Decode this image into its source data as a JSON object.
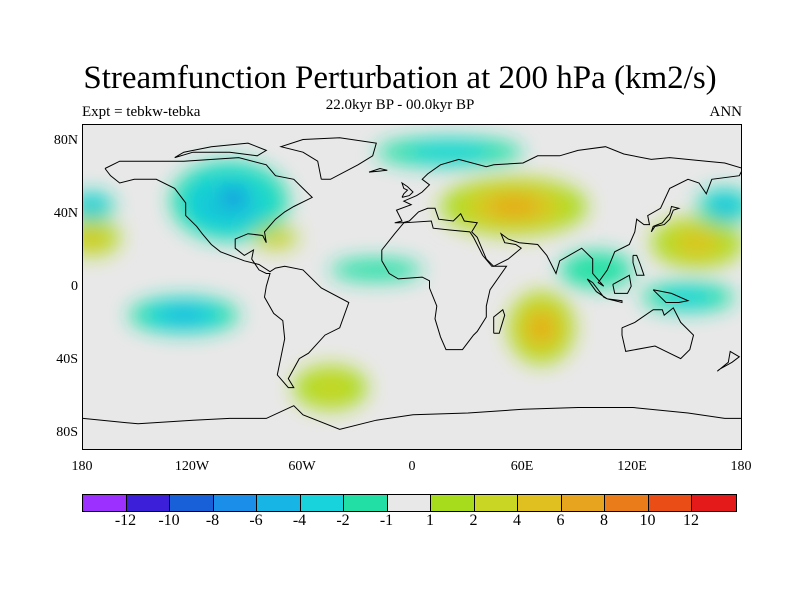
{
  "title": "Streamfunction Perturbation at 200 hPa (km2/s)",
  "subtitle": "22.0kyr BP - 00.0kyr BP",
  "left_label": "Expt = tebkw-tebka",
  "right_label": "ANN",
  "lat_ticks": [
    "80N",
    "40N",
    "0",
    "40S",
    "80S"
  ],
  "lon_ticks": [
    "180",
    "120W",
    "60W",
    "0",
    "60E",
    "120E",
    "180"
  ],
  "colorbar": {
    "colors": [
      "#9b30ff",
      "#3b1fd9",
      "#1760d8",
      "#1a8ee8",
      "#16b5e6",
      "#19d3dc",
      "#22e0a5",
      "#e8e8e8",
      "#a6dc1c",
      "#c9d623",
      "#e0c020",
      "#e7a41e",
      "#eb7c1a",
      "#ea4e16",
      "#e41a1a"
    ],
    "labels": [
      "-12",
      "-10",
      "-8",
      "-6",
      "-4",
      "-2",
      "-1",
      "1",
      "2",
      "4",
      "6",
      "8",
      "10",
      "12"
    ]
  },
  "blobs": [
    {
      "lon": -100,
      "lat": 48,
      "rx": 32,
      "ry": 22,
      "v": -7
    },
    {
      "lon": -98,
      "lat": 50,
      "rx": 15,
      "ry": 10,
      "v": -9
    },
    {
      "lon": -75,
      "lat": 28,
      "rx": 12,
      "ry": 6,
      "v": 5
    },
    {
      "lon": 55,
      "lat": 45,
      "rx": 40,
      "ry": 16,
      "v": 7
    },
    {
      "lon": 70,
      "lat": -22,
      "rx": 18,
      "ry": 20,
      "v": 8
    },
    {
      "lon": 155,
      "lat": 25,
      "rx": 25,
      "ry": 14,
      "v": 6
    },
    {
      "lon": -175,
      "lat": 28,
      "rx": 15,
      "ry": 10,
      "v": 5
    },
    {
      "lon": 170,
      "lat": 45,
      "rx": 15,
      "ry": 10,
      "v": -5
    },
    {
      "lon": -175,
      "lat": 45,
      "rx": 12,
      "ry": 8,
      "v": -5
    },
    {
      "lon": -125,
      "lat": -15,
      "rx": 30,
      "ry": 10,
      "v": -5
    },
    {
      "lon": 150,
      "lat": -5,
      "rx": 25,
      "ry": 8,
      "v": -4
    },
    {
      "lon": -45,
      "lat": -55,
      "rx": 20,
      "ry": 12,
      "v": 4
    },
    {
      "lon": -20,
      "lat": 10,
      "rx": 25,
      "ry": 6,
      "v": -2
    },
    {
      "lon": 20,
      "lat": 75,
      "rx": 40,
      "ry": 8,
      "v": -3
    },
    {
      "lon": 100,
      "lat": 10,
      "rx": 20,
      "ry": 10,
      "v": -2
    }
  ],
  "coastlines": [
    [
      [
        -168,
        66
      ],
      [
        -160,
        70
      ],
      [
        -140,
        70
      ],
      [
        -125,
        70
      ],
      [
        -95,
        72
      ],
      [
        -80,
        68
      ],
      [
        -75,
        62
      ],
      [
        -65,
        60
      ],
      [
        -60,
        55
      ],
      [
        -55,
        50
      ],
      [
        -65,
        45
      ],
      [
        -70,
        42
      ],
      [
        -75,
        38
      ],
      [
        -81,
        31
      ],
      [
        -80,
        25
      ],
      [
        -82,
        29
      ],
      [
        -90,
        30
      ],
      [
        -97,
        27
      ],
      [
        -97,
        22
      ],
      [
        -92,
        18
      ],
      [
        -87,
        21
      ],
      [
        -88,
        16
      ],
      [
        -84,
        10
      ],
      [
        -80,
        8
      ],
      [
        -78,
        8
      ],
      [
        -80,
        1
      ],
      [
        -81,
        -5
      ],
      [
        -76,
        -14
      ],
      [
        -71,
        -18
      ],
      [
        -70,
        -28
      ],
      [
        -72,
        -38
      ],
      [
        -74,
        -48
      ],
      [
        -68,
        -55
      ],
      [
        -65,
        -55
      ],
      [
        -68,
        -50
      ],
      [
        -62,
        -39
      ],
      [
        -57,
        -36
      ],
      [
        -48,
        -26
      ],
      [
        -40,
        -22
      ],
      [
        -35,
        -8
      ],
      [
        -50,
        0
      ],
      [
        -60,
        10
      ],
      [
        -70,
        12
      ],
      [
        -75,
        11
      ],
      [
        -78,
        9
      ],
      [
        -84,
        13
      ],
      [
        -92,
        15
      ],
      [
        -105,
        20
      ],
      [
        -110,
        24
      ],
      [
        -115,
        30
      ],
      [
        -118,
        34
      ],
      [
        -124,
        40
      ],
      [
        -124,
        47
      ],
      [
        -130,
        55
      ],
      [
        -140,
        60
      ],
      [
        -152,
        60
      ],
      [
        -160,
        58
      ],
      [
        -165,
        62
      ],
      [
        -168,
        66
      ]
    ],
    [
      [
        -10,
        36
      ],
      [
        -6,
        37
      ],
      [
        -9,
        43
      ],
      [
        -1,
        46
      ],
      [
        -5,
        48
      ],
      [
        2,
        51
      ],
      [
        5,
        53
      ],
      [
        9,
        57
      ],
      [
        5,
        60
      ],
      [
        8,
        63
      ],
      [
        15,
        68
      ],
      [
        25,
        71
      ],
      [
        40,
        67
      ],
      [
        44,
        68
      ],
      [
        60,
        69
      ],
      [
        68,
        73
      ],
      [
        80,
        73
      ],
      [
        90,
        76
      ],
      [
        105,
        78
      ],
      [
        115,
        74
      ],
      [
        130,
        71
      ],
      [
        140,
        72
      ],
      [
        160,
        70
      ],
      [
        170,
        69
      ],
      [
        180,
        66
      ],
      [
        178,
        62
      ],
      [
        163,
        60
      ],
      [
        160,
        52
      ],
      [
        156,
        58
      ],
      [
        150,
        60
      ],
      [
        140,
        55
      ],
      [
        135,
        44
      ],
      [
        128,
        40
      ],
      [
        129,
        35
      ],
      [
        126,
        35
      ],
      [
        122,
        38
      ],
      [
        121,
        31
      ],
      [
        118,
        24
      ],
      [
        110,
        20
      ],
      [
        106,
        10
      ],
      [
        101,
        3
      ],
      [
        104,
        1
      ],
      [
        98,
        8
      ],
      [
        98,
        16
      ],
      [
        92,
        22
      ],
      [
        80,
        15
      ],
      [
        78,
        8
      ],
      [
        73,
        18
      ],
      [
        68,
        24
      ],
      [
        58,
        25
      ],
      [
        52,
        27
      ],
      [
        48,
        30
      ],
      [
        50,
        25
      ],
      [
        56,
        24
      ],
      [
        59,
        22
      ],
      [
        52,
        16
      ],
      [
        44,
        12
      ],
      [
        40,
        16
      ],
      [
        35,
        28
      ],
      [
        32,
        31
      ],
      [
        35,
        36
      ],
      [
        28,
        37
      ],
      [
        26,
        41
      ],
      [
        22,
        37
      ],
      [
        14,
        38
      ],
      [
        12,
        44
      ],
      [
        8,
        44
      ],
      [
        3,
        42
      ],
      [
        -2,
        37
      ],
      [
        -6,
        36
      ],
      [
        -10,
        36
      ]
    ],
    [
      [
        -17,
        15
      ],
      [
        -17,
        21
      ],
      [
        -10,
        30
      ],
      [
        -5,
        36
      ],
      [
        10,
        37
      ],
      [
        11,
        33
      ],
      [
        20,
        32
      ],
      [
        31,
        31
      ],
      [
        33,
        28
      ],
      [
        38,
        18
      ],
      [
        43,
        12
      ],
      [
        51,
        12
      ],
      [
        42,
        -1
      ],
      [
        40,
        -10
      ],
      [
        40,
        -16
      ],
      [
        35,
        -24
      ],
      [
        33,
        -26
      ],
      [
        27,
        -34
      ],
      [
        18,
        -34
      ],
      [
        15,
        -27
      ],
      [
        12,
        -17
      ],
      [
        13,
        -10
      ],
      [
        9,
        0
      ],
      [
        9,
        4
      ],
      [
        5,
        6
      ],
      [
        -8,
        5
      ],
      [
        -13,
        8
      ],
      [
        -17,
        15
      ]
    ],
    [
      [
        114,
        -22
      ],
      [
        121,
        -19
      ],
      [
        131,
        -12
      ],
      [
        136,
        -12
      ],
      [
        137,
        -15
      ],
      [
        142,
        -11
      ],
      [
        146,
        -19
      ],
      [
        153,
        -26
      ],
      [
        151,
        -34
      ],
      [
        146,
        -39
      ],
      [
        138,
        -35
      ],
      [
        132,
        -32
      ],
      [
        116,
        -35
      ],
      [
        114,
        -26
      ],
      [
        114,
        -22
      ]
    ],
    [
      [
        -50,
        60
      ],
      [
        -45,
        60
      ],
      [
        -30,
        68
      ],
      [
        -22,
        73
      ],
      [
        -20,
        80
      ],
      [
        -40,
        83
      ],
      [
        -60,
        82
      ],
      [
        -72,
        78
      ],
      [
        -60,
        75
      ],
      [
        -52,
        70
      ],
      [
        -50,
        60
      ]
    ],
    [
      [
        -180,
        -72
      ],
      [
        -150,
        -75
      ],
      [
        -120,
        -73
      ],
      [
        -100,
        -72
      ],
      [
        -80,
        -72
      ],
      [
        -65,
        -65
      ],
      [
        -60,
        -70
      ],
      [
        -40,
        -78
      ],
      [
        -20,
        -73
      ],
      [
        0,
        -70
      ],
      [
        30,
        -69
      ],
      [
        60,
        -67
      ],
      [
        90,
        -66
      ],
      [
        120,
        -66
      ],
      [
        150,
        -69
      ],
      [
        170,
        -72
      ],
      [
        180,
        -72
      ]
    ],
    [
      [
        -6,
        50
      ],
      [
        -2,
        51
      ],
      [
        0,
        53
      ],
      [
        -3,
        56
      ],
      [
        -6,
        58
      ],
      [
        -5,
        55
      ],
      [
        -3,
        54
      ],
      [
        -5,
        52
      ],
      [
        -6,
        50
      ]
    ],
    [
      [
        130,
        31
      ],
      [
        132,
        34
      ],
      [
        137,
        35
      ],
      [
        140,
        38
      ],
      [
        142,
        43
      ],
      [
        145,
        44
      ],
      [
        141,
        45
      ],
      [
        140,
        41
      ],
      [
        136,
        36
      ],
      [
        131,
        34
      ],
      [
        130,
        31
      ]
    ],
    [
      [
        44,
        -25
      ],
      [
        47,
        -25
      ],
      [
        50,
        -15
      ],
      [
        49,
        -12
      ],
      [
        44,
        -16
      ],
      [
        44,
        -25
      ]
    ],
    [
      [
        -130,
        72
      ],
      [
        -120,
        75
      ],
      [
        -100,
        75
      ],
      [
        -85,
        73
      ],
      [
        -80,
        76
      ],
      [
        -90,
        80
      ],
      [
        -110,
        78
      ],
      [
        -125,
        75
      ],
      [
        -130,
        72
      ]
    ],
    [
      [
        95,
        5
      ],
      [
        98,
        3
      ],
      [
        104,
        -5
      ],
      [
        106,
        -6
      ],
      [
        100,
        -2
      ],
      [
        95,
        5
      ]
    ],
    [
      [
        110,
        -7
      ],
      [
        114,
        -8
      ],
      [
        114,
        -7
      ],
      [
        106,
        -6
      ],
      [
        110,
        -7
      ]
    ],
    [
      [
        109,
        2
      ],
      [
        118,
        7
      ],
      [
        119,
        1
      ],
      [
        117,
        -3
      ],
      [
        110,
        -3
      ],
      [
        109,
        2
      ]
    ],
    [
      [
        131,
        -1
      ],
      [
        141,
        -3
      ],
      [
        150,
        -7
      ],
      [
        145,
        -8
      ],
      [
        138,
        -8
      ],
      [
        131,
        -1
      ]
    ],
    [
      [
        120,
        18
      ],
      [
        122,
        18
      ],
      [
        124,
        13
      ],
      [
        126,
        7
      ],
      [
        122,
        7
      ],
      [
        120,
        14
      ],
      [
        120,
        18
      ]
    ],
    [
      [
        167,
        -45
      ],
      [
        174,
        -41
      ],
      [
        178,
        -38
      ],
      [
        173,
        -35
      ],
      [
        172,
        -41
      ],
      [
        166,
        -46
      ],
      [
        167,
        -45
      ]
    ],
    [
      [
        -24,
        64
      ],
      [
        -14,
        65
      ],
      [
        -18,
        66
      ],
      [
        -24,
        64
      ]
    ]
  ]
}
